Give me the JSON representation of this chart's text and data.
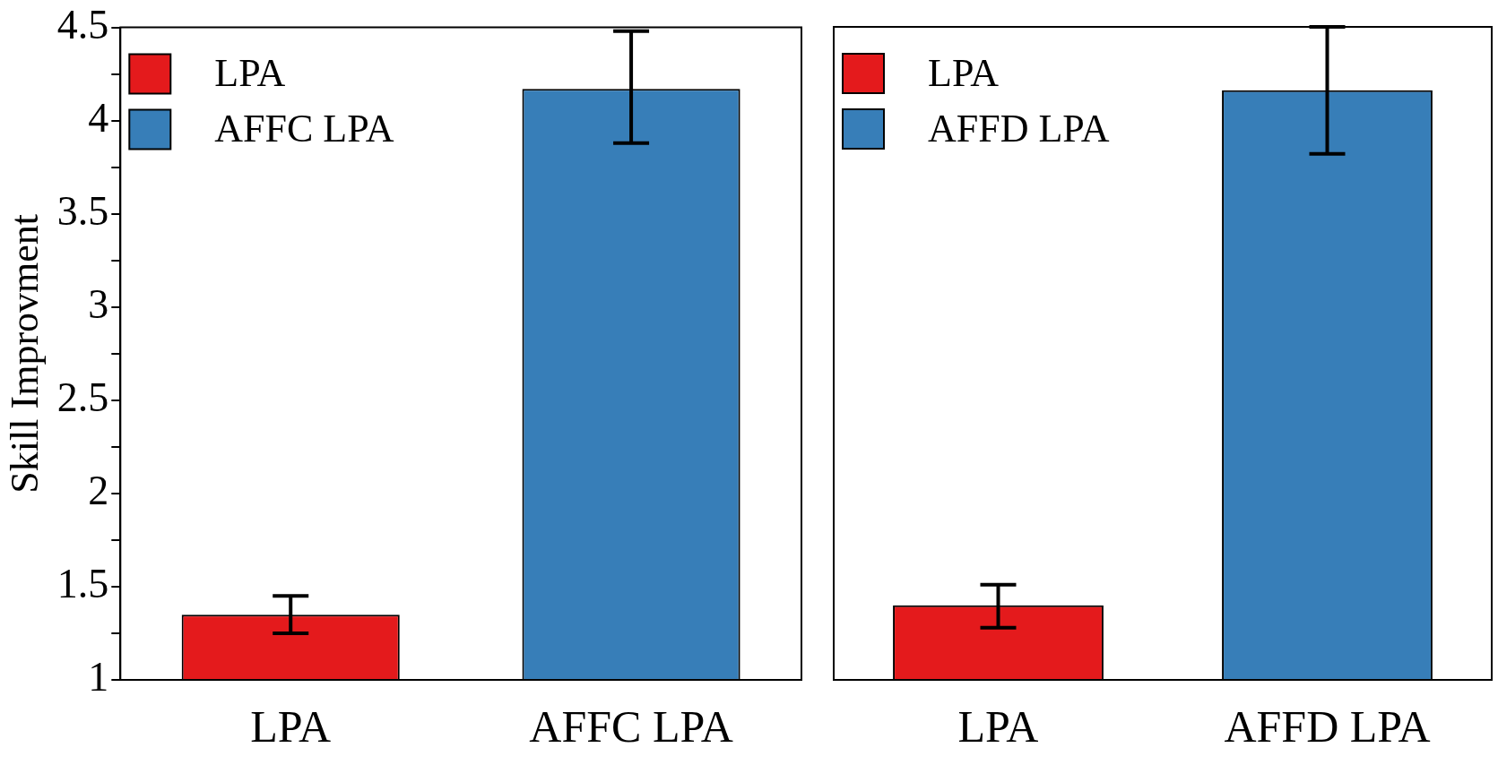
{
  "chart_data": [
    {
      "type": "bar",
      "ylabel": "Skill Improvment",
      "categories": [
        "LPA",
        "AFFC LPA"
      ],
      "series": [
        {
          "name": "LPA",
          "color": "#e41a1c",
          "values": [
            1.35,
            null
          ],
          "errors": [
            [
              1.25,
              1.45
            ],
            null
          ]
        },
        {
          "name": "AFFC LPA",
          "color": "#377eb8",
          "values": [
            null,
            4.17
          ],
          "errors": [
            null,
            [
              3.88,
              4.48
            ]
          ]
        }
      ],
      "ylim": [
        1,
        4.5
      ],
      "yticks": [
        1,
        {
          "value": 1.25,
          "label": null
        },
        1.5,
        {
          "value": 1.75,
          "label": null
        },
        2,
        {
          "value": 2.25,
          "label": null
        },
        2.5,
        {
          "value": 2.75,
          "label": null
        },
        3,
        {
          "value": 3.25,
          "label": null
        },
        3.5,
        {
          "value": 3.75,
          "label": null
        },
        4,
        {
          "value": 4.25,
          "label": null
        },
        4.5
      ],
      "legend": "top left",
      "grid": false
    },
    {
      "type": "bar",
      "categories": [
        "LPA",
        "AFFD LPA"
      ],
      "series": [
        {
          "name": "LPA",
          "color": "#e41a1c",
          "values": [
            1.4,
            null
          ],
          "errors": [
            [
              1.28,
              1.51
            ],
            null
          ]
        },
        {
          "name": "AFFD LPA",
          "color": "#377eb8",
          "values": [
            null,
            4.16
          ],
          "errors": [
            null,
            [
              3.82,
              4.5
            ]
          ]
        }
      ],
      "ylim": [
        1,
        4.5
      ],
      "tick_labels": "x",
      "legend": "top left",
      "grid": false
    }
  ]
}
